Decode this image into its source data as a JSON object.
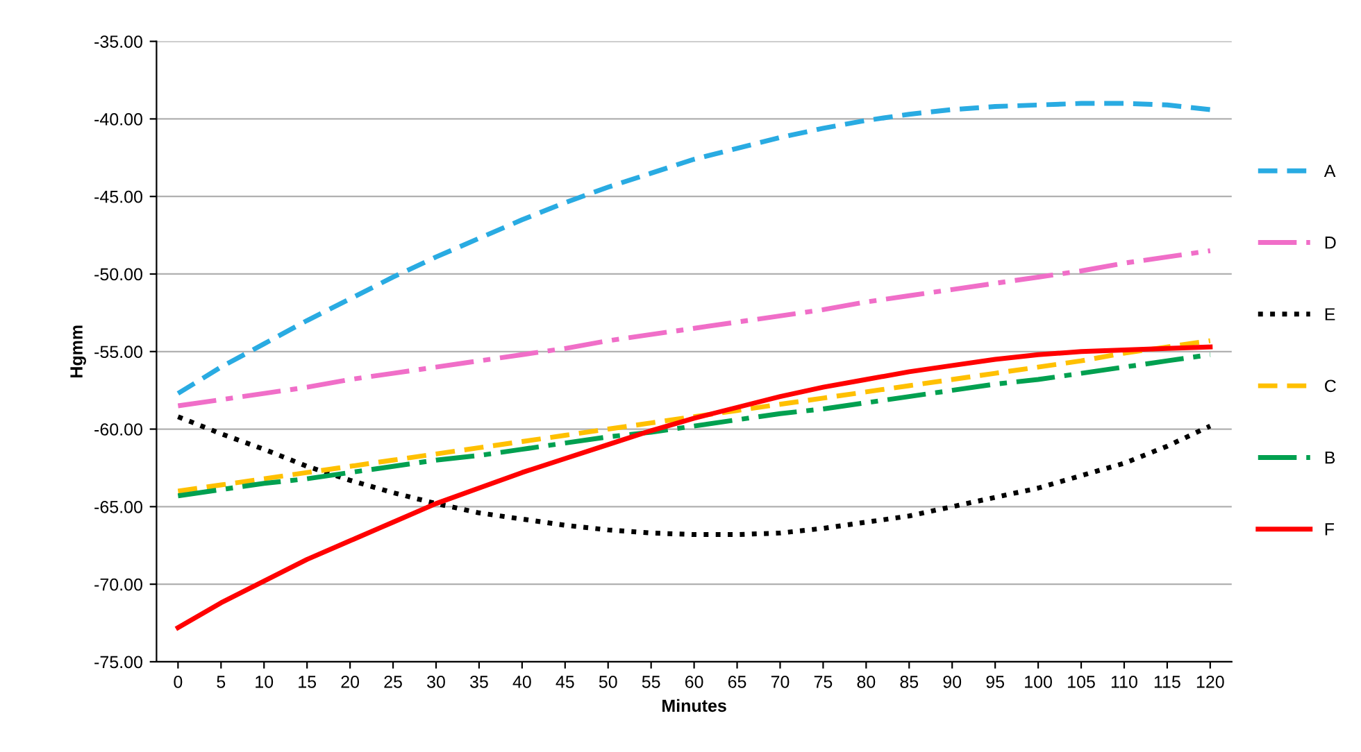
{
  "chart_data": {
    "type": "line",
    "xlabel": "Minutes",
    "ylabel": "Hgmm",
    "categories": [
      "0",
      "5",
      "10",
      "15",
      "20",
      "25",
      "30",
      "35",
      "40",
      "45",
      "50",
      "55",
      "60",
      "65",
      "70",
      "75",
      "80",
      "85",
      "90",
      "95",
      "100",
      "105",
      "110",
      "115",
      "120"
    ],
    "series": [
      {
        "name": "A",
        "color": "#29abe2",
        "line_style": "dashed",
        "values": [
          -57.7,
          -56.0,
          -54.5,
          -53.0,
          -51.6,
          -50.2,
          -48.9,
          -47.7,
          -46.5,
          -45.4,
          -44.4,
          -43.5,
          -42.6,
          -41.9,
          -41.2,
          -40.6,
          -40.1,
          -39.7,
          -39.4,
          -39.2,
          -39.1,
          -39.0,
          -39.0,
          -39.1,
          -39.4
        ]
      },
      {
        "name": "D",
        "color": "#f06ec8",
        "line_style": "dashdot",
        "values": [
          -58.5,
          -58.1,
          -57.7,
          -57.3,
          -56.8,
          -56.4,
          -56.0,
          -55.6,
          -55.2,
          -54.8,
          -54.3,
          -53.9,
          -53.5,
          -53.1,
          -52.7,
          -52.3,
          -51.8,
          -51.4,
          -51.0,
          -50.6,
          -50.2,
          -49.8,
          -49.3,
          -48.9,
          -48.5
        ]
      },
      {
        "name": "E",
        "color": "#000000",
        "line_style": "dotted",
        "values": [
          -59.2,
          -60.3,
          -61.3,
          -62.4,
          -63.3,
          -64.1,
          -64.8,
          -65.4,
          -65.8,
          -66.2,
          -66.5,
          -66.7,
          -66.8,
          -66.8,
          -66.7,
          -66.4,
          -66.0,
          -65.6,
          -65.0,
          -64.4,
          -63.8,
          -63.0,
          -62.2,
          -61.1,
          -59.8
        ]
      },
      {
        "name": "C",
        "color": "#ffc000",
        "line_style": "dashed",
        "values": [
          -64.0,
          -63.6,
          -63.2,
          -62.8,
          -62.4,
          -62.0,
          -61.6,
          -61.2,
          -60.8,
          -60.4,
          -60.0,
          -59.6,
          -59.2,
          -58.8,
          -58.4,
          -58.0,
          -57.6,
          -57.2,
          -56.8,
          -56.4,
          -56.0,
          -55.6,
          -55.1,
          -54.7,
          -54.3
        ]
      },
      {
        "name": "B",
        "color": "#00a050",
        "line_style": "dashdot",
        "values": [
          -64.3,
          -63.9,
          -63.5,
          -63.2,
          -62.8,
          -62.4,
          -62.0,
          -61.7,
          -61.3,
          -60.9,
          -60.5,
          -60.2,
          -59.8,
          -59.4,
          -59.0,
          -58.7,
          -58.3,
          -57.9,
          -57.5,
          -57.1,
          -56.8,
          -56.4,
          -56.0,
          -55.6,
          -55.2
        ]
      },
      {
        "name": "F",
        "color": "#ff0000",
        "line_style": "solid",
        "values": [
          -72.8,
          -71.2,
          -69.8,
          -68.4,
          -67.2,
          -66.0,
          -64.8,
          -63.8,
          -62.8,
          -61.9,
          -61.0,
          -60.1,
          -59.3,
          -58.6,
          -57.9,
          -57.3,
          -56.8,
          -56.3,
          -55.9,
          -55.5,
          -55.2,
          -55.0,
          -54.9,
          -54.8,
          -54.7
        ]
      }
    ],
    "ylim": [
      -75,
      -35
    ],
    "yticks": [
      {
        "value": -75,
        "label": "-75.00"
      },
      {
        "value": -70,
        "label": "-70.00"
      },
      {
        "value": -65,
        "label": "-65.00"
      },
      {
        "value": -60,
        "label": "-60.00"
      },
      {
        "value": -55,
        "label": "-55.00"
      },
      {
        "value": -50,
        "label": "-50.00"
      },
      {
        "value": -45,
        "label": "-45.00"
      },
      {
        "value": -40,
        "label": "-40.00"
      },
      {
        "value": -35,
        "label": "-35.00"
      }
    ],
    "grid": "y",
    "legend": "right",
    "marker": "none"
  }
}
